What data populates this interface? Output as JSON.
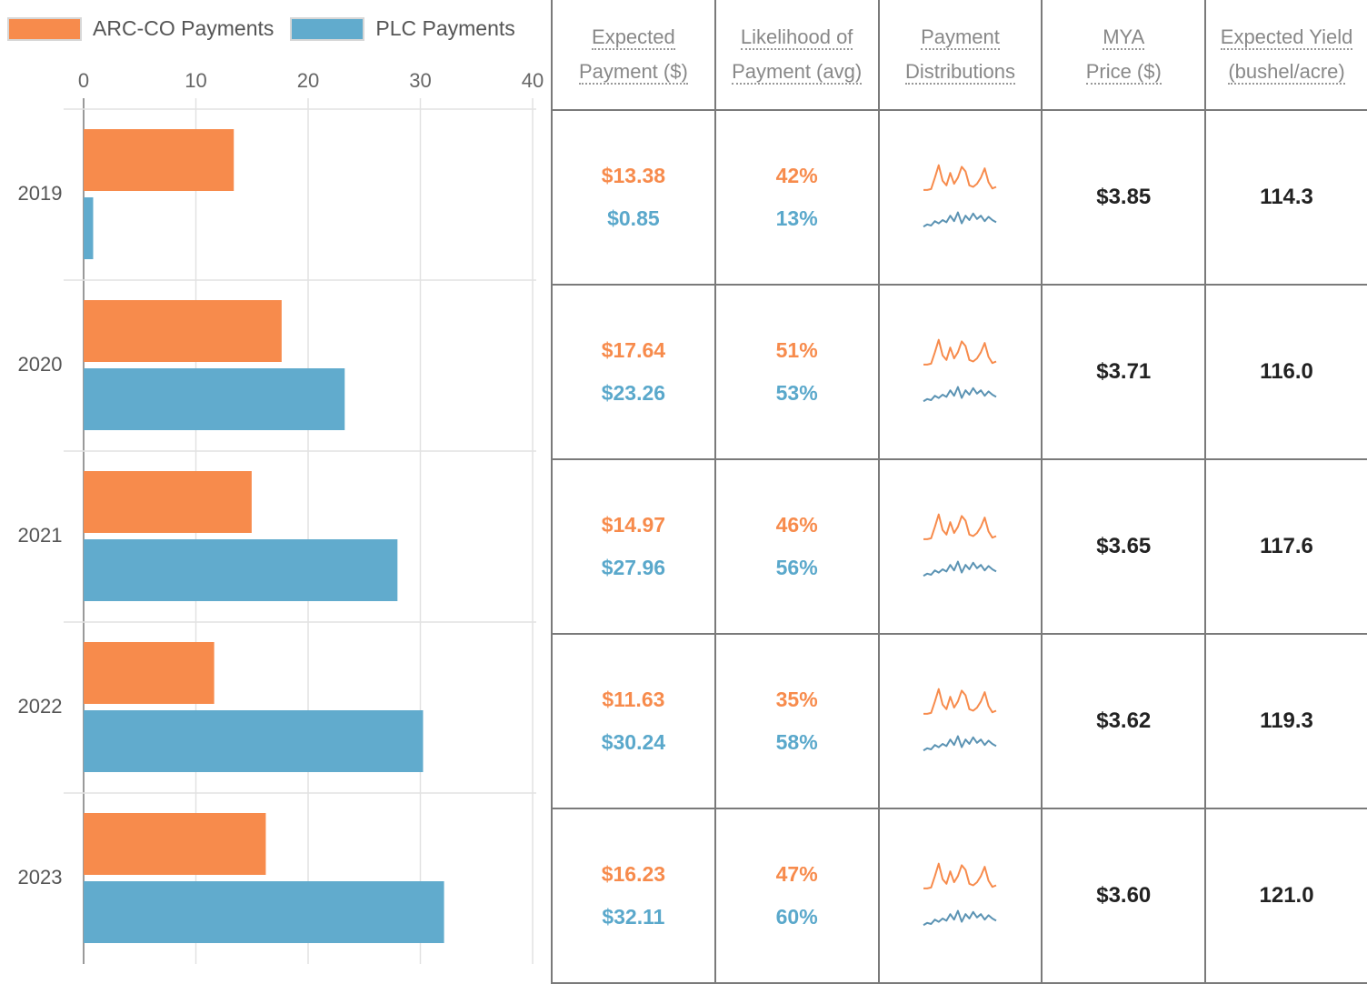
{
  "legend": {
    "arc": {
      "label": "ARC-CO Payments",
      "color": "#f78b4c"
    },
    "plc": {
      "label": "PLC Payments",
      "color": "#61abcd"
    }
  },
  "chart_data": {
    "type": "bar",
    "orientation": "horizontal",
    "categories": [
      "2019",
      "2020",
      "2021",
      "2022",
      "2023"
    ],
    "series": [
      {
        "name": "ARC-CO Payments",
        "values": [
          13.38,
          17.64,
          14.97,
          11.63,
          16.23
        ],
        "color": "#f78b4c"
      },
      {
        "name": "PLC Payments",
        "values": [
          0.85,
          23.26,
          27.96,
          30.24,
          32.11
        ],
        "color": "#61abcd"
      }
    ],
    "xlim": [
      0,
      40
    ],
    "xticks": [
      "0",
      "10",
      "20",
      "30",
      "40"
    ],
    "grid": true,
    "legend_position": "top-left"
  },
  "table": {
    "headers": [
      [
        "Expected",
        "Payment ($)"
      ],
      [
        "Likelihood of",
        "Payment (avg)"
      ],
      [
        "Payment",
        "Distributions"
      ],
      [
        "MYA",
        "Price ($)"
      ],
      [
        "Expected Yield",
        "(bushel/acre)"
      ]
    ],
    "rows": [
      {
        "year": "2019",
        "arc_payment": "$13.38",
        "plc_payment": "$0.85",
        "arc_likelihood": "42%",
        "plc_likelihood": "13%",
        "mya_price": "$3.85",
        "expected_yield": "114.3"
      },
      {
        "year": "2020",
        "arc_payment": "$17.64",
        "plc_payment": "$23.26",
        "arc_likelihood": "51%",
        "plc_likelihood": "53%",
        "mya_price": "$3.71",
        "expected_yield": "116.0"
      },
      {
        "year": "2021",
        "arc_payment": "$14.97",
        "plc_payment": "$27.96",
        "arc_likelihood": "46%",
        "plc_likelihood": "56%",
        "mya_price": "$3.65",
        "expected_yield": "117.6"
      },
      {
        "year": "2022",
        "arc_payment": "$11.63",
        "plc_payment": "$30.24",
        "arc_likelihood": "35%",
        "plc_likelihood": "58%",
        "mya_price": "$3.62",
        "expected_yield": "119.3"
      },
      {
        "year": "2023",
        "arc_payment": "$16.23",
        "plc_payment": "$32.11",
        "arc_likelihood": "47%",
        "plc_likelihood": "60%",
        "mya_price": "$3.60",
        "expected_yield": "121.0"
      }
    ]
  }
}
